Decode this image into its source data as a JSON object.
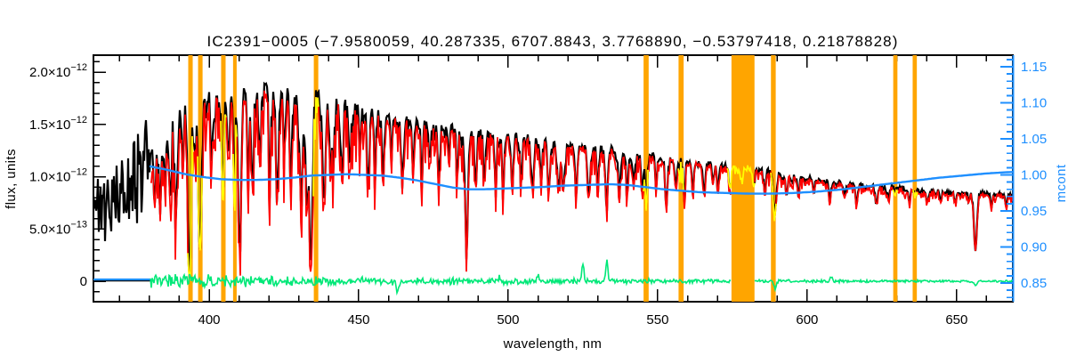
{
  "title": "IC2391−0005   (−7.9580059, 40.287335, 6707.8843, 3.7768890, −0.53797418, 0.21878828)",
  "colors": {
    "observed": "#000000",
    "model": "#ff0000",
    "masked_points": "#ffff00",
    "continuum": "#1e8fff",
    "residual": "#00e878",
    "mask_band": "#ffa500",
    "axis": "#000000",
    "background": "#ffffff"
  },
  "chart_data": {
    "type": "line",
    "title": "IC2391−0005   (−7.9580059, 40.287335, 6707.8843, 3.7768890, −0.53797418, 0.21878828)",
    "x_axis": {
      "label": "wavelength, nm",
      "range_nm": [
        361.3,
        668.8
      ],
      "major_ticks": [
        400,
        450,
        500,
        550,
        600,
        650
      ],
      "major_tick_labels": [
        "400",
        "450",
        "500",
        "550",
        "600",
        "650"
      ],
      "minor_step": 10
    },
    "y_axis_flux": {
      "label": "flux, units",
      "units": "1e-12",
      "range_1e12": [
        -0.2,
        2.16
      ],
      "major_ticks": [
        {
          "value": 0.0,
          "mant": "0",
          "exp": ""
        },
        {
          "value": 0.5,
          "mant": "5.0×10",
          "exp": "−13"
        },
        {
          "value": 1.0,
          "mant": "1.0×10",
          "exp": "−12"
        },
        {
          "value": 1.5,
          "mant": "1.5×10",
          "exp": "−12"
        },
        {
          "value": 2.0,
          "mant": "2.0×10",
          "exp": "−12"
        }
      ],
      "minor_step": 0.1
    },
    "y_axis_mcont": {
      "label": "mcont",
      "range": [
        0.824,
        1.166
      ],
      "major_tick_labels": [
        "0.85",
        "0.90",
        "0.95",
        "1.00",
        "1.05",
        "1.10",
        "1.15"
      ],
      "major_tick_values": [
        0.85,
        0.9,
        0.95,
        1.0,
        1.05,
        1.1,
        1.15
      ],
      "minor_step": 0.01
    },
    "noise_seed": 1234567,
    "prefit_region": {
      "end_nm": 380.2,
      "mean_frac": 0.85,
      "amp_frac": 0.33
    },
    "observed_envelope_1e12": [
      [
        361,
        0.88
      ],
      [
        365,
        0.92
      ],
      [
        370,
        1.0
      ],
      [
        374,
        1.12
      ],
      [
        378,
        1.3
      ],
      [
        380,
        1.45
      ],
      [
        383,
        1.56
      ],
      [
        386,
        1.66
      ],
      [
        390,
        1.76
      ],
      [
        394,
        1.82
      ],
      [
        398,
        1.78
      ],
      [
        402,
        1.78
      ],
      [
        406,
        1.81
      ],
      [
        410,
        1.8
      ],
      [
        414,
        1.83
      ],
      [
        418,
        1.86
      ],
      [
        422,
        1.88
      ],
      [
        426,
        1.85
      ],
      [
        430,
        1.82
      ],
      [
        434,
        1.8
      ],
      [
        438,
        1.76
      ],
      [
        442,
        1.72
      ],
      [
        446,
        1.69
      ],
      [
        450,
        1.66
      ],
      [
        455,
        1.62
      ],
      [
        460,
        1.58
      ],
      [
        465,
        1.55
      ],
      [
        470,
        1.52
      ],
      [
        475,
        1.49
      ],
      [
        480,
        1.46
      ],
      [
        486,
        1.44
      ],
      [
        492,
        1.42
      ],
      [
        498,
        1.4
      ],
      [
        505,
        1.37
      ],
      [
        512,
        1.33
      ],
      [
        518,
        1.3
      ],
      [
        525,
        1.28
      ],
      [
        532,
        1.26
      ],
      [
        540,
        1.23
      ],
      [
        548,
        1.19
      ],
      [
        556,
        1.15
      ],
      [
        564,
        1.12
      ],
      [
        572,
        1.1
      ],
      [
        580,
        1.08
      ],
      [
        588,
        1.04
      ],
      [
        596,
        0.99
      ],
      [
        604,
        0.96
      ],
      [
        612,
        0.93
      ],
      [
        620,
        0.91
      ],
      [
        628,
        0.89
      ],
      [
        636,
        0.87
      ],
      [
        644,
        0.85
      ],
      [
        652,
        0.84
      ],
      [
        660,
        0.83
      ],
      [
        668,
        0.82
      ]
    ],
    "model_scale_blue": 0.978,
    "model_scale_red": 0.996,
    "absorption_lines": [
      [
        381.8,
        0.52,
        0.45
      ],
      [
        383.6,
        0.56,
        0.45
      ],
      [
        385.2,
        0.42,
        0.4
      ],
      [
        386.9,
        0.5,
        0.45
      ],
      [
        388.9,
        0.62,
        0.5
      ],
      [
        391.2,
        0.38,
        0.4
      ],
      [
        393.4,
        0.86,
        0.55
      ],
      [
        395.2,
        0.3,
        0.35
      ],
      [
        396.9,
        0.84,
        0.55
      ],
      [
        400.9,
        0.32,
        0.35
      ],
      [
        404.6,
        0.48,
        0.4
      ],
      [
        406.4,
        0.35,
        0.35
      ],
      [
        408.4,
        0.4,
        0.35
      ],
      [
        410.2,
        0.8,
        0.5
      ],
      [
        413.1,
        0.45,
        0.35
      ],
      [
        414.5,
        0.52,
        0.35
      ],
      [
        417.0,
        0.4,
        0.35
      ],
      [
        420.3,
        0.45,
        0.35
      ],
      [
        422.7,
        0.6,
        0.4
      ],
      [
        425.1,
        0.32,
        0.35
      ],
      [
        427.2,
        0.5,
        0.35
      ],
      [
        430.8,
        0.5,
        0.6
      ],
      [
        432.7,
        0.55,
        0.4
      ],
      [
        434.0,
        0.84,
        0.5
      ],
      [
        438.5,
        0.55,
        0.45
      ],
      [
        440.6,
        0.45,
        0.35
      ],
      [
        441.6,
        0.36,
        0.3
      ],
      [
        444.4,
        0.42,
        0.35
      ],
      [
        447.2,
        0.35,
        0.3
      ],
      [
        450.5,
        0.24,
        0.3
      ],
      [
        453.2,
        0.38,
        0.4
      ],
      [
        455.5,
        0.4,
        0.3
      ],
      [
        458.2,
        0.32,
        0.35
      ],
      [
        461.0,
        0.22,
        0.3
      ],
      [
        464.6,
        0.4,
        0.4
      ],
      [
        468.2,
        0.32,
        0.3
      ],
      [
        471.2,
        0.34,
        0.3
      ],
      [
        473.8,
        0.22,
        0.3
      ],
      [
        476.8,
        0.3,
        0.35
      ],
      [
        480.2,
        0.22,
        0.3
      ],
      [
        483.0,
        0.26,
        0.3
      ],
      [
        486.1,
        0.8,
        0.45
      ],
      [
        489.2,
        0.38,
        0.35
      ],
      [
        492.1,
        0.33,
        0.3
      ],
      [
        495.8,
        0.35,
        0.3
      ],
      [
        498.3,
        0.38,
        0.35
      ],
      [
        501.4,
        0.38,
        0.35
      ],
      [
        504.3,
        0.32,
        0.3
      ],
      [
        508.2,
        0.35,
        0.4
      ],
      [
        511.1,
        0.3,
        0.3
      ],
      [
        513.6,
        0.36,
        0.4
      ],
      [
        516.8,
        0.3,
        0.45
      ],
      [
        518.4,
        0.34,
        0.45
      ],
      [
        522.8,
        0.36,
        0.35
      ],
      [
        527.0,
        0.33,
        0.45
      ],
      [
        530.0,
        0.3,
        0.3
      ],
      [
        532.9,
        0.42,
        0.4
      ],
      [
        537.2,
        0.35,
        0.35
      ],
      [
        539.8,
        0.3,
        0.3
      ],
      [
        542.0,
        0.22,
        0.3
      ],
      [
        544.8,
        0.3,
        0.3
      ],
      [
        546.2,
        0.34,
        0.3
      ],
      [
        549.5,
        0.22,
        0.3
      ],
      [
        552.9,
        0.38,
        0.4
      ],
      [
        556.0,
        0.22,
        0.3
      ],
      [
        558.9,
        0.3,
        0.3
      ],
      [
        561.7,
        0.24,
        0.3
      ],
      [
        565.6,
        0.26,
        0.3
      ],
      [
        568.5,
        0.18,
        0.3
      ],
      [
        570.2,
        0.24,
        0.3
      ],
      [
        574.2,
        0.2,
        0.3
      ],
      [
        578.2,
        0.14,
        0.3
      ],
      [
        582.2,
        0.16,
        0.3
      ],
      [
        585.9,
        0.22,
        0.3
      ],
      [
        589.2,
        0.35,
        0.5
      ],
      [
        593.1,
        0.18,
        0.3
      ],
      [
        597.1,
        0.18,
        0.3
      ],
      [
        602.2,
        0.14,
        0.3
      ],
      [
        607.6,
        0.18,
        0.35
      ],
      [
        612.6,
        0.14,
        0.3
      ],
      [
        616.6,
        0.2,
        0.35
      ],
      [
        623.1,
        0.18,
        0.35
      ],
      [
        627.1,
        0.13,
        0.3
      ],
      [
        634.1,
        0.12,
        0.3
      ],
      [
        640.2,
        0.12,
        0.3
      ],
      [
        644.6,
        0.11,
        0.25
      ],
      [
        649.6,
        0.11,
        0.25
      ],
      [
        654.1,
        0.1,
        0.25
      ],
      [
        656.3,
        0.65,
        0.5
      ],
      [
        661.6,
        0.12,
        0.3
      ],
      [
        666.6,
        0.14,
        0.3
      ]
    ],
    "mask_bands_nm": [
      [
        393.0,
        394.5
      ],
      [
        396.3,
        397.8
      ],
      [
        404.0,
        405.5
      ],
      [
        408.0,
        409.2
      ],
      [
        435.0,
        436.5
      ],
      [
        545.3,
        547.0
      ],
      [
        557.0,
        558.7
      ],
      [
        574.7,
        582.4
      ],
      [
        587.9,
        589.5
      ],
      [
        628.8,
        630.2
      ],
      [
        635.3,
        636.7
      ]
    ],
    "wide_band_nm": [
      574.7,
      582.4
    ],
    "mcont_points": [
      [
        380,
        1.012
      ],
      [
        386,
        1.007
      ],
      [
        392,
        1.001
      ],
      [
        398,
        0.997
      ],
      [
        404,
        0.994
      ],
      [
        410,
        0.993
      ],
      [
        416,
        0.993
      ],
      [
        422,
        0.994
      ],
      [
        428,
        0.996
      ],
      [
        434,
        0.999
      ],
      [
        440,
        1.0
      ],
      [
        446,
        1.001
      ],
      [
        452,
        1.0
      ],
      [
        458,
        0.999
      ],
      [
        464,
        0.996
      ],
      [
        470,
        0.992
      ],
      [
        476,
        0.987
      ],
      [
        482,
        0.982
      ],
      [
        487,
        0.98
      ],
      [
        492,
        0.98
      ],
      [
        498,
        0.981
      ],
      [
        504,
        0.982
      ],
      [
        511,
        0.983
      ],
      [
        518,
        0.985
      ],
      [
        526,
        0.986
      ],
      [
        534,
        0.987
      ],
      [
        540,
        0.986
      ],
      [
        546,
        0.983
      ],
      [
        552,
        0.98
      ],
      [
        558,
        0.978
      ],
      [
        564,
        0.976
      ],
      [
        572,
        0.975
      ],
      [
        580,
        0.974
      ],
      [
        588,
        0.974
      ],
      [
        596,
        0.975
      ],
      [
        604,
        0.977
      ],
      [
        612,
        0.98
      ],
      [
        620,
        0.984
      ],
      [
        628,
        0.988
      ],
      [
        636,
        0.992
      ],
      [
        644,
        0.996
      ],
      [
        652,
        0.999
      ],
      [
        660,
        1.002
      ],
      [
        668,
        1.004
      ]
    ],
    "residual": {
      "baseline_1e12": 0,
      "start_nm": 380.2,
      "noise_profile_1e12": [
        [
          380,
          0.085
        ],
        [
          395,
          0.075
        ],
        [
          410,
          0.065
        ],
        [
          430,
          0.05
        ],
        [
          455,
          0.042
        ],
        [
          480,
          0.038
        ],
        [
          505,
          0.034
        ],
        [
          530,
          0.03
        ],
        [
          555,
          0.024
        ],
        [
          580,
          0.02
        ],
        [
          605,
          0.017
        ],
        [
          630,
          0.015
        ],
        [
          668,
          0.013
        ]
      ],
      "spikes_1e12": [
        [
          463.0,
          -0.1
        ],
        [
          497.0,
          0.045
        ],
        [
          510.0,
          0.055
        ],
        [
          525.0,
          0.17
        ],
        [
          533.0,
          0.19
        ],
        [
          589.3,
          -0.085
        ],
        [
          608.0,
          0.05
        ],
        [
          656.3,
          -0.045
        ]
      ]
    }
  }
}
